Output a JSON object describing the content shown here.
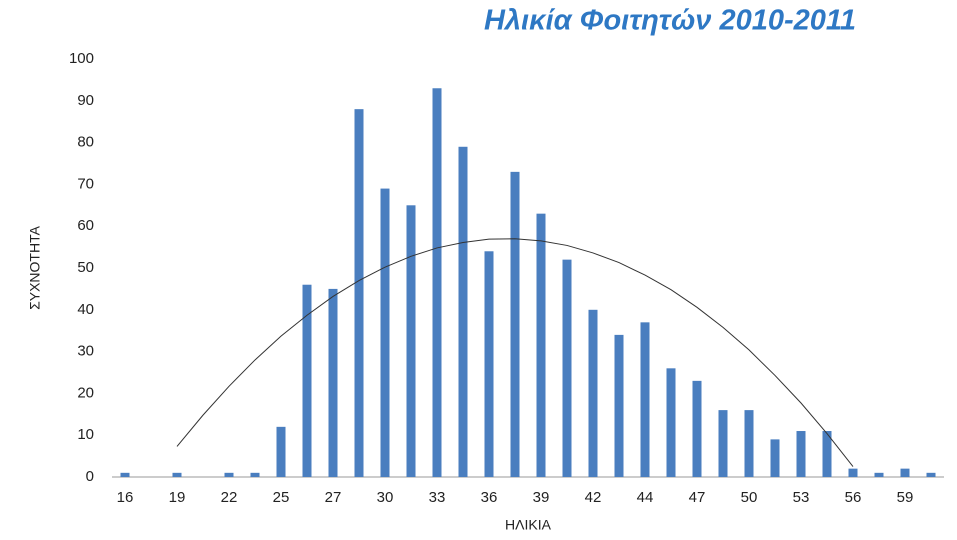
{
  "chart_data": {
    "type": "bar",
    "title": "Ηλικία Φοιτητών 2010-2011",
    "x_label": "ΗΛΙΚΙΑ",
    "y_label": "ΣΥΧΝΟΤΗΤΑ",
    "categories": [
      "16",
      null,
      "19",
      null,
      "22",
      null,
      "25",
      null,
      "27",
      null,
      "30",
      null,
      "33",
      null,
      "36",
      null,
      "39",
      null,
      "42",
      null,
      "44",
      null,
      "47",
      null,
      "50",
      null,
      "53",
      null,
      "56",
      null,
      "59",
      null
    ],
    "values": [
      1,
      0,
      1,
      0,
      1,
      1,
      12,
      46,
      45,
      88,
      69,
      65,
      93,
      79,
      54,
      73,
      63,
      52,
      40,
      34,
      37,
      26,
      23,
      16,
      16,
      9,
      11,
      11,
      2,
      1,
      2,
      1
    ],
    "color": "#4a7ebf",
    "trendline": {
      "color": "#333333",
      "values": [
        null,
        null,
        7.3,
        14.8,
        21.7,
        28,
        33.7,
        38.7,
        43.2,
        47,
        50.2,
        52.8,
        54.8,
        56.1,
        56.9,
        57,
        56.5,
        55.4,
        53.6,
        51.3,
        48.3,
        44.8,
        40.6,
        35.8,
        30.4,
        24.3,
        17.7,
        10.4,
        2.5,
        null,
        null,
        null
      ]
    },
    "ylim": [
      0,
      100
    ],
    "yticks": [
      0,
      10,
      20,
      30,
      40,
      50,
      60,
      70,
      80,
      90,
      100
    ],
    "grid": false
  }
}
